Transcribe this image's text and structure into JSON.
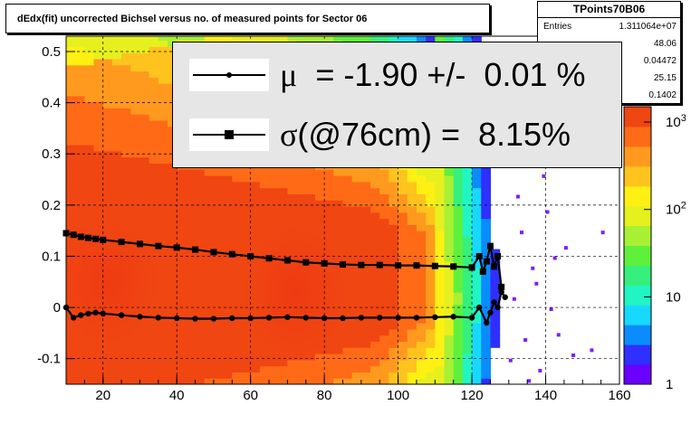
{
  "title": "dEdx(fit) uncorrected Bichsel versus no. of measured points for Sector 06",
  "stats": {
    "name": "TPoints70B06",
    "rows": [
      {
        "label": "Entries",
        "value": "1.311064e+07"
      },
      {
        "label": "",
        "value": "48.06"
      },
      {
        "label": "",
        "value": "0.04472"
      },
      {
        "label": "",
        "value": "25.15"
      },
      {
        "label": "",
        "value": "0.1402"
      }
    ]
  },
  "legend": {
    "mu": {
      "symbol": "μ",
      "text": "  = -1.90 +/-  0.01 %"
    },
    "sigma": {
      "symbol": "σ",
      "text": "(@76cm) =  8.15%"
    }
  },
  "colorbar": {
    "ticks": [
      "1",
      "10",
      "10^2",
      "10^3"
    ],
    "log": true,
    "range": [
      1,
      1500
    ]
  },
  "colors": {
    "frame": "#000000",
    "palette": [
      "#6a00ff",
      "#2f2fff",
      "#0a8cff",
      "#17d9ff",
      "#21f5c4",
      "#35f07c",
      "#5ff03c",
      "#a8f034",
      "#e6f01e",
      "#fff014",
      "#ffc31e",
      "#ff9a1e",
      "#ff6a16",
      "#f04612"
    ]
  },
  "chart_data": {
    "type": "heatmap",
    "xlim": [
      10,
      160
    ],
    "ylim": [
      -0.15,
      0.53
    ],
    "xticks": [
      "20",
      "40",
      "60",
      "80",
      "100",
      "120",
      "140",
      "160"
    ],
    "yticks": [
      "-0.1",
      "0",
      "0.1",
      "0.2",
      "0.3",
      "0.4",
      "0.5"
    ],
    "grid": true,
    "series": [
      {
        "name": "μ",
        "marker": "dot",
        "x": [
          10,
          12,
          14,
          16,
          18,
          20,
          25,
          30,
          35,
          40,
          45,
          50,
          55,
          60,
          65,
          70,
          75,
          80,
          85,
          90,
          95,
          100,
          105,
          110,
          115,
          120,
          122,
          124,
          125,
          126,
          127,
          128,
          129
        ],
        "y": [
          0,
          -0.02,
          -0.015,
          -0.012,
          -0.01,
          -0.012,
          -0.015,
          -0.018,
          -0.02,
          -0.021,
          -0.022,
          -0.022,
          -0.021,
          -0.021,
          -0.02,
          -0.019,
          -0.02,
          -0.021,
          -0.021,
          -0.02,
          -0.02,
          -0.02,
          -0.02,
          -0.019,
          -0.018,
          -0.02,
          0.0,
          -0.03,
          -0.01,
          0.01,
          0.0,
          0.03,
          0.02
        ]
      },
      {
        "name": "σ(@76cm)",
        "marker": "square",
        "x": [
          10,
          12,
          14,
          16,
          18,
          20,
          25,
          30,
          35,
          40,
          45,
          50,
          55,
          60,
          65,
          70,
          75,
          80,
          85,
          90,
          95,
          100,
          105,
          110,
          115,
          120,
          122,
          123,
          124,
          125,
          126,
          127,
          128
        ],
        "y": [
          0.145,
          0.142,
          0.138,
          0.136,
          0.134,
          0.132,
          0.128,
          0.124,
          0.12,
          0.117,
          0.113,
          0.108,
          0.104,
          0.1,
          0.096,
          0.092,
          0.088,
          0.086,
          0.084,
          0.083,
          0.083,
          0.082,
          0.082,
          0.081,
          0.08,
          0.078,
          0.1,
          0.07,
          0.09,
          0.12,
          0.08,
          0.1,
          0.04
        ]
      }
    ]
  }
}
